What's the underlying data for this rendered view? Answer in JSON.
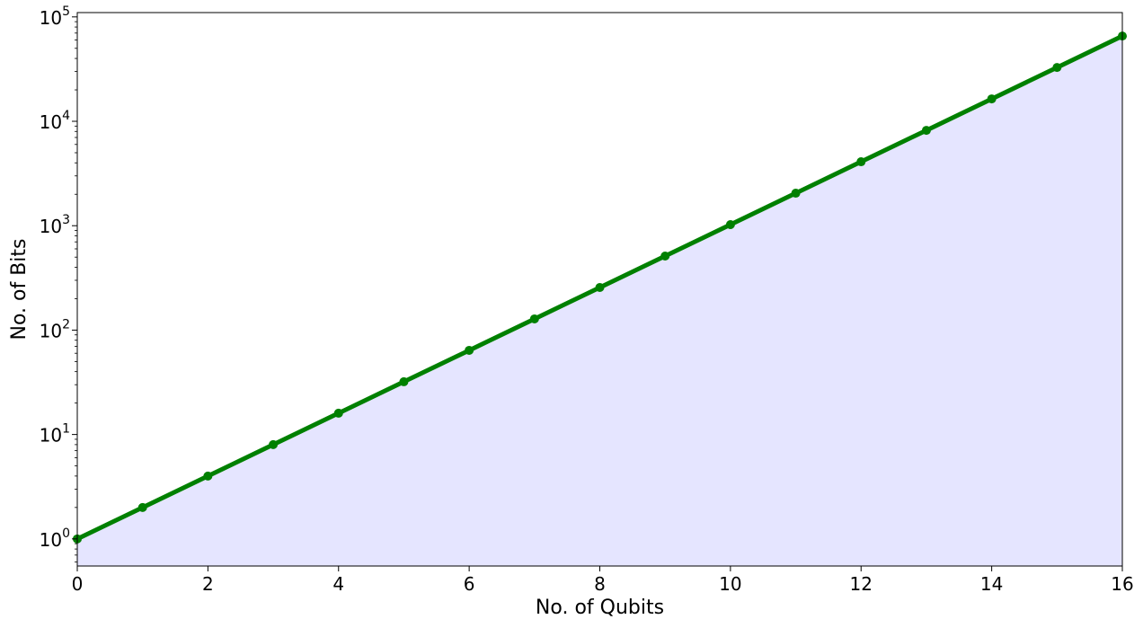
{
  "chart_data": {
    "type": "area",
    "title": "",
    "xlabel": "No. of Qubits",
    "ylabel": "No. of Bits",
    "xlim": [
      0,
      16
    ],
    "ylim": [
      0.55,
      110000
    ],
    "yscale": "log",
    "grid": false,
    "legend": "none",
    "x_ticks": [
      0,
      2,
      4,
      6,
      8,
      10,
      12,
      14,
      16
    ],
    "y_ticks": [
      {
        "value": 1,
        "base": "10",
        "exp": "0"
      },
      {
        "value": 10,
        "base": "10",
        "exp": "1"
      },
      {
        "value": 100,
        "base": "10",
        "exp": "2"
      },
      {
        "value": 1000,
        "base": "10",
        "exp": "3"
      },
      {
        "value": 10000,
        "base": "10",
        "exp": "4"
      },
      {
        "value": 100000,
        "base": "10",
        "exp": "5"
      }
    ],
    "series": [
      {
        "x": [
          0,
          1,
          2,
          3,
          4,
          5,
          6,
          7,
          8,
          9,
          10,
          11,
          12,
          13,
          14,
          15,
          16
        ],
        "values": [
          1,
          2,
          4,
          8,
          16,
          32,
          64,
          128,
          256,
          512,
          1024,
          2048,
          4096,
          8192,
          16384,
          32768,
          65536
        ],
        "color": "#008000",
        "fill_color": "#e5e5ff"
      }
    ]
  }
}
